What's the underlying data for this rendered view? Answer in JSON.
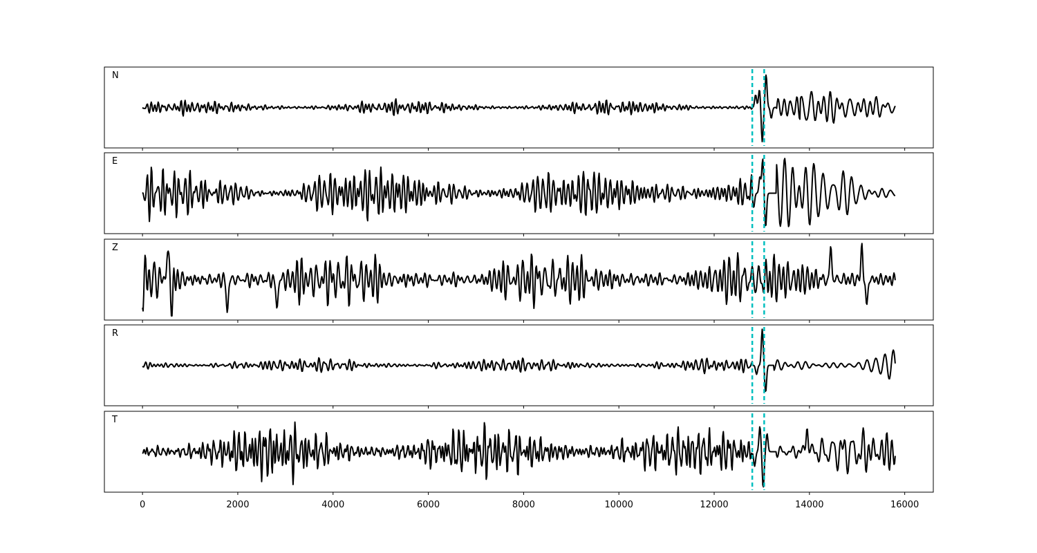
{
  "chart_data": {
    "type": "line",
    "title": "",
    "xlabel": "",
    "ylabel": "",
    "xlim": [
      -800,
      16600
    ],
    "xticks": [
      0,
      2000,
      4000,
      6000,
      8000,
      10000,
      12000,
      14000,
      16000
    ],
    "xtick_labels": [
      "0",
      "2000",
      "4000",
      "6000",
      "8000",
      "10000",
      "12000",
      "14000",
      "16000"
    ],
    "samples": 15800,
    "grid": false,
    "trace_color": "#000000",
    "marker_color": "#00bfbf",
    "markers": [
      12800,
      13050
    ],
    "channels": [
      {
        "label": "N",
        "segments": [
          {
            "x_start": 0,
            "x_end": 12800,
            "amplitude": 0.15,
            "period": 95
          },
          {
            "x_start": 13300,
            "x_end": 13800,
            "amplitude": 0.25,
            "period": 140
          },
          {
            "x_start": 13800,
            "x_end": 15800,
            "amplitude": 0.45,
            "period": 180
          }
        ],
        "events": [
          {
            "x": 12870,
            "y": 0.35
          },
          {
            "x": 12950,
            "y": 0.5
          },
          {
            "x": 13010,
            "y": -0.95
          },
          {
            "x": 13090,
            "y": 0.9
          },
          {
            "x": 13200,
            "y": -0.3
          }
        ]
      },
      {
        "label": "E",
        "segments": [
          {
            "x_start": 0,
            "x_end": 12800,
            "amplitude": 0.55,
            "period": 90
          },
          {
            "x_start": 13300,
            "x_end": 15800,
            "amplitude": 0.75,
            "period": 150
          }
        ],
        "events": [
          {
            "x": 12830,
            "y": -0.4
          },
          {
            "x": 12960,
            "y": 0.45
          },
          {
            "x": 13020,
            "y": 0.95
          },
          {
            "x": 13080,
            "y": -0.95
          }
        ]
      },
      {
        "label": "Z",
        "segments": [
          {
            "x_start": 0,
            "x_end": 15800,
            "amplitude": 0.55,
            "period": 110
          }
        ],
        "events": [
          {
            "x": 520,
            "y": 0.85
          },
          {
            "x": 620,
            "y": -0.7
          },
          {
            "x": 1780,
            "y": -0.95
          },
          {
            "x": 2820,
            "y": -0.9
          },
          {
            "x": 14450,
            "y": 0.9
          },
          {
            "x": 15100,
            "y": 0.95
          },
          {
            "x": 15200,
            "y": -0.8
          }
        ]
      },
      {
        "label": "R",
        "segments": [
          {
            "x_start": 0,
            "x_end": 12800,
            "amplitude": 0.15,
            "period": 95
          },
          {
            "x_start": 13250,
            "x_end": 15800,
            "amplitude": 0.35,
            "period": 170
          }
        ],
        "events": [
          {
            "x": 12890,
            "y": -0.25
          },
          {
            "x": 13010,
            "y": 1.0
          },
          {
            "x": 13080,
            "y": -0.75
          }
        ]
      },
      {
        "label": "T",
        "segments": [
          {
            "x_start": 0,
            "x_end": 12800,
            "amplitude": 0.55,
            "period": 90
          },
          {
            "x_start": 13300,
            "x_end": 15800,
            "amplitude": 0.7,
            "period": 150
          }
        ],
        "events": [
          {
            "x": 12850,
            "y": -0.4
          },
          {
            "x": 12960,
            "y": 0.7
          },
          {
            "x": 13030,
            "y": -1.0
          },
          {
            "x": 13110,
            "y": 0.5
          },
          {
            "x": 13950,
            "y": 0.8
          }
        ]
      }
    ]
  }
}
